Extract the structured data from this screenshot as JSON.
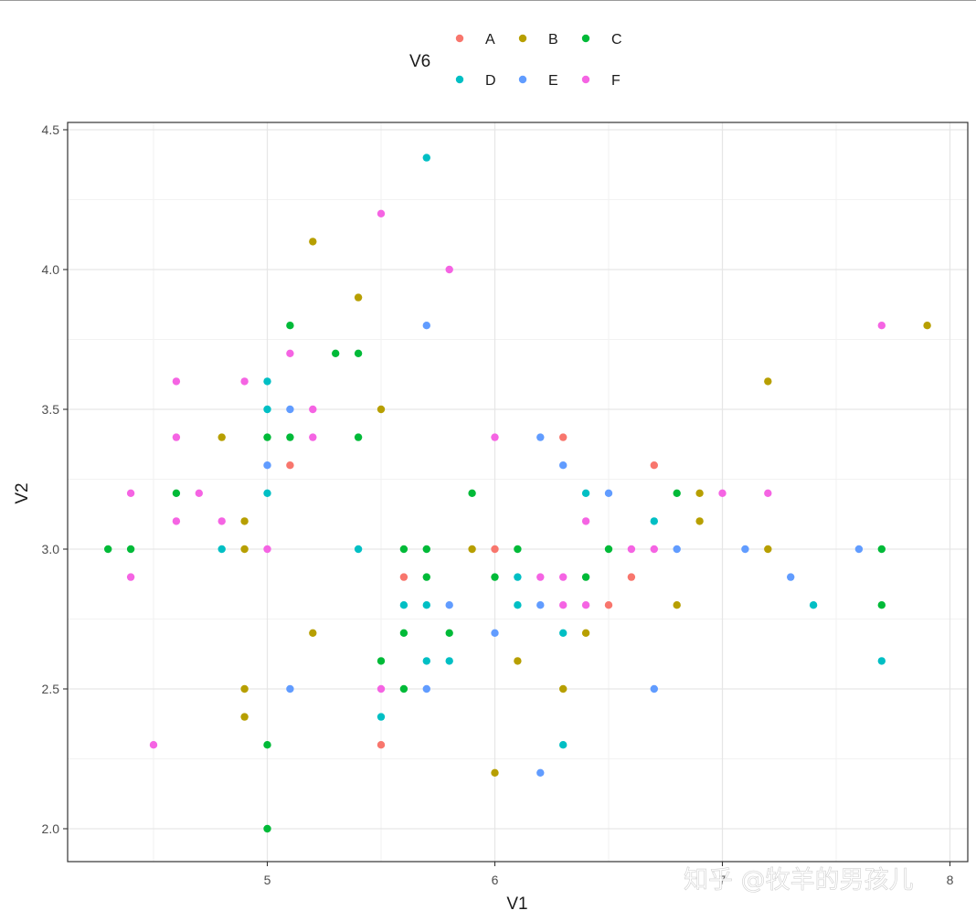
{
  "chart_data": {
    "type": "scatter",
    "xlabel": "V1",
    "ylabel": "V2",
    "xlim": [
      4.2,
      8.0
    ],
    "ylim": [
      1.88,
      4.52
    ],
    "xticks": [
      5,
      6,
      7,
      8
    ],
    "yticks": [
      2.0,
      2.5,
      3.0,
      3.5,
      4.0,
      4.5
    ],
    "grid": true,
    "legend": {
      "title": "V6",
      "position": "top",
      "entries": [
        "A",
        "B",
        "C",
        "D",
        "E",
        "F"
      ]
    },
    "colors": {
      "A": "#F8766D",
      "B": "#B79F00",
      "C": "#00BA38",
      "D": "#00BFC4",
      "E": "#619CFF",
      "F": "#F564E3"
    },
    "series": [
      {
        "name": "A",
        "points": [
          [
            5.5,
            2.3
          ],
          [
            5.1,
            3.3
          ],
          [
            5.6,
            2.9
          ],
          [
            6.0,
            3.0
          ],
          [
            6.3,
            3.4
          ],
          [
            6.5,
            2.8
          ],
          [
            6.6,
            2.9
          ],
          [
            6.7,
            3.3
          ]
        ]
      },
      {
        "name": "B",
        "points": [
          [
            4.8,
            3.4
          ],
          [
            4.9,
            3.1
          ],
          [
            4.9,
            3.0
          ],
          [
            4.9,
            2.5
          ],
          [
            4.9,
            2.4
          ],
          [
            5.2,
            4.1
          ],
          [
            5.2,
            2.7
          ],
          [
            5.4,
            3.9
          ],
          [
            5.5,
            3.5
          ],
          [
            5.9,
            3.0
          ],
          [
            6.0,
            2.2
          ],
          [
            6.1,
            2.6
          ],
          [
            6.3,
            2.5
          ],
          [
            6.4,
            2.7
          ],
          [
            6.8,
            2.8
          ],
          [
            6.9,
            3.2
          ],
          [
            6.9,
            3.1
          ],
          [
            7.2,
            3.6
          ],
          [
            7.2,
            3.0
          ],
          [
            7.9,
            3.8
          ]
        ]
      },
      {
        "name": "C",
        "points": [
          [
            4.3,
            3.0
          ],
          [
            4.4,
            3.0
          ],
          [
            4.6,
            3.2
          ],
          [
            5.0,
            3.4
          ],
          [
            5.0,
            2.3
          ],
          [
            5.0,
            2.0
          ],
          [
            5.1,
            3.8
          ],
          [
            5.1,
            3.4
          ],
          [
            5.3,
            3.7
          ],
          [
            5.4,
            3.7
          ],
          [
            5.4,
            3.4
          ],
          [
            5.5,
            2.6
          ],
          [
            5.6,
            3.0
          ],
          [
            5.6,
            2.7
          ],
          [
            5.6,
            2.5
          ],
          [
            5.7,
            3.0
          ],
          [
            5.7,
            2.9
          ],
          [
            5.8,
            2.7
          ],
          [
            5.9,
            3.2
          ],
          [
            6.0,
            2.9
          ],
          [
            6.1,
            3.0
          ],
          [
            6.4,
            2.9
          ],
          [
            6.5,
            3.0
          ],
          [
            6.8,
            3.2
          ],
          [
            7.7,
            3.0
          ],
          [
            7.7,
            2.8
          ]
        ]
      },
      {
        "name": "D",
        "points": [
          [
            4.8,
            3.0
          ],
          [
            5.0,
            3.6
          ],
          [
            5.0,
            3.5
          ],
          [
            5.0,
            3.2
          ],
          [
            5.4,
            3.0
          ],
          [
            5.5,
            2.4
          ],
          [
            5.6,
            2.8
          ],
          [
            5.7,
            4.4
          ],
          [
            5.7,
            2.8
          ],
          [
            5.7,
            2.6
          ],
          [
            5.8,
            2.6
          ],
          [
            6.1,
            2.9
          ],
          [
            6.1,
            2.8
          ],
          [
            6.3,
            2.7
          ],
          [
            6.3,
            2.3
          ],
          [
            6.4,
            3.2
          ],
          [
            6.7,
            3.1
          ],
          [
            7.4,
            2.8
          ],
          [
            7.7,
            2.6
          ]
        ]
      },
      {
        "name": "E",
        "points": [
          [
            5.0,
            3.3
          ],
          [
            5.1,
            3.5
          ],
          [
            5.1,
            2.5
          ],
          [
            5.7,
            3.8
          ],
          [
            5.7,
            2.5
          ],
          [
            5.8,
            2.8
          ],
          [
            6.0,
            2.7
          ],
          [
            6.2,
            3.4
          ],
          [
            6.2,
            2.8
          ],
          [
            6.2,
            2.2
          ],
          [
            6.3,
            3.3
          ],
          [
            6.5,
            3.2
          ],
          [
            6.7,
            2.5
          ],
          [
            6.8,
            3.0
          ],
          [
            7.1,
            3.0
          ],
          [
            7.3,
            2.9
          ],
          [
            7.6,
            3.0
          ]
        ]
      },
      {
        "name": "F",
        "points": [
          [
            4.4,
            3.2
          ],
          [
            4.4,
            2.9
          ],
          [
            4.5,
            2.3
          ],
          [
            4.6,
            3.6
          ],
          [
            4.6,
            3.4
          ],
          [
            4.6,
            3.1
          ],
          [
            4.7,
            3.2
          ],
          [
            4.8,
            3.1
          ],
          [
            4.9,
            3.6
          ],
          [
            5.0,
            3.0
          ],
          [
            5.1,
            3.7
          ],
          [
            5.2,
            3.5
          ],
          [
            5.2,
            3.4
          ],
          [
            5.5,
            4.2
          ],
          [
            5.5,
            2.5
          ],
          [
            5.8,
            4.0
          ],
          [
            6.0,
            3.4
          ],
          [
            6.2,
            2.9
          ],
          [
            6.3,
            2.9
          ],
          [
            6.3,
            2.8
          ],
          [
            6.4,
            3.1
          ],
          [
            6.4,
            2.8
          ],
          [
            6.6,
            3.0
          ],
          [
            6.7,
            3.0
          ],
          [
            7.0,
            3.2
          ],
          [
            7.2,
            3.2
          ],
          [
            7.7,
            3.8
          ]
        ]
      }
    ]
  },
  "watermark": {
    "text": "知乎 @牧羊的男孩儿"
  }
}
